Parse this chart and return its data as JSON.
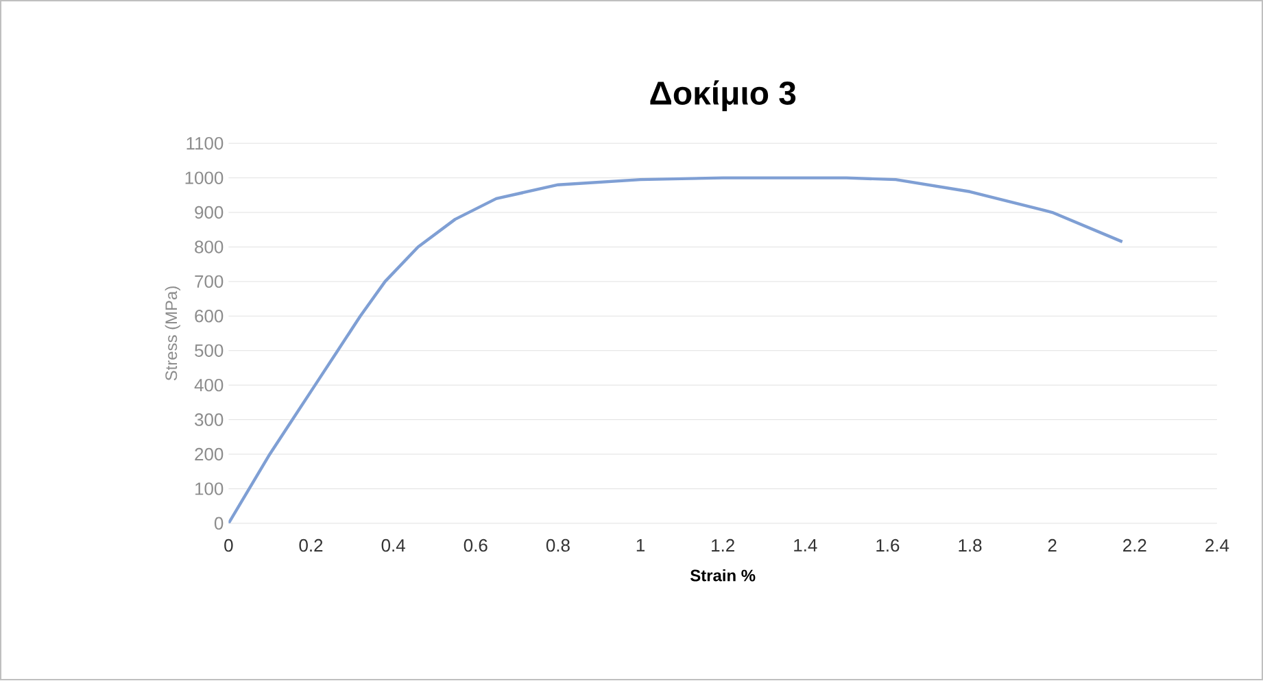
{
  "chart_data": {
    "type": "line",
    "title": "Δοκίμιο 3",
    "xlabel": "Strain %",
    "ylabel": "Stress (MPa)",
    "x": [
      0,
      0.05,
      0.1,
      0.155,
      0.21,
      0.265,
      0.32,
      0.38,
      0.46,
      0.55,
      0.65,
      0.8,
      1.0,
      1.2,
      1.5,
      1.62,
      1.8,
      2.0,
      2.17
    ],
    "series": [
      {
        "color": "#7f9fd4",
        "values": [
          0,
          100,
          200,
          300,
          400,
          500,
          600,
          700,
          800,
          880,
          940,
          980,
          995,
          1000,
          1000,
          995,
          960,
          900,
          815
        ]
      }
    ],
    "xlim": [
      0,
      2.4
    ],
    "xticks": [
      0,
      0.2,
      0.4,
      0.6,
      0.8,
      1,
      1.2,
      1.4,
      1.6,
      1.8,
      2,
      2.2,
      2.4
    ],
    "ylim": [
      0,
      1100
    ],
    "yticks": [
      0,
      100,
      200,
      300,
      400,
      500,
      600,
      700,
      800,
      900,
      1000,
      1100
    ],
    "grid": "y",
    "marker": "none",
    "line_style": "solid"
  }
}
